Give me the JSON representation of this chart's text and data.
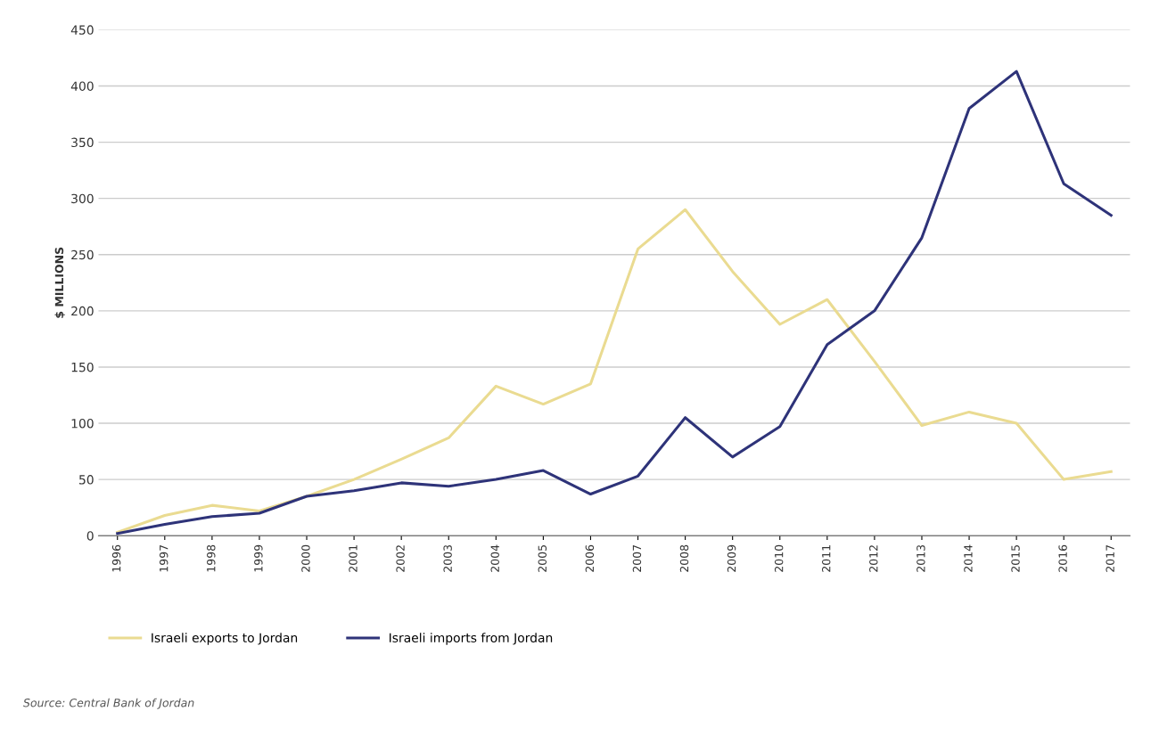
{
  "chart_data": {
    "type": "line",
    "ylabel": "$ MILLIONS",
    "categories": [
      "1996",
      "1997",
      "1998",
      "1999",
      "2000",
      "2001",
      "2002",
      "2003",
      "2004",
      "2005",
      "2006",
      "2007",
      "2008",
      "2009",
      "2010",
      "2011",
      "2012",
      "2013",
      "2014",
      "2015",
      "2016",
      "2017"
    ],
    "series": [
      {
        "name": "Israeli exports to Jordan",
        "color": "#eadb91",
        "values": [
          3,
          18,
          27,
          22,
          35,
          50,
          68,
          87,
          133,
          117,
          135,
          255,
          290,
          235,
          188,
          210,
          155,
          98,
          110,
          100,
          50,
          57
        ]
      },
      {
        "name": "Israeli imports from Jordan",
        "color": "#2e3379",
        "values": [
          2,
          10,
          17,
          20,
          35,
          40,
          47,
          44,
          50,
          58,
          37,
          53,
          105,
          70,
          97,
          170,
          200,
          265,
          380,
          413,
          313,
          285
        ]
      }
    ],
    "ylim": [
      0,
      450
    ],
    "yticks": [
      0,
      50,
      100,
      150,
      200,
      250,
      300,
      350,
      400,
      450
    ],
    "grid": "y",
    "legend": "bottom",
    "marker": "none",
    "line_style": "solid",
    "annotations": [
      "Source: Central Bank of Jordan"
    ]
  }
}
